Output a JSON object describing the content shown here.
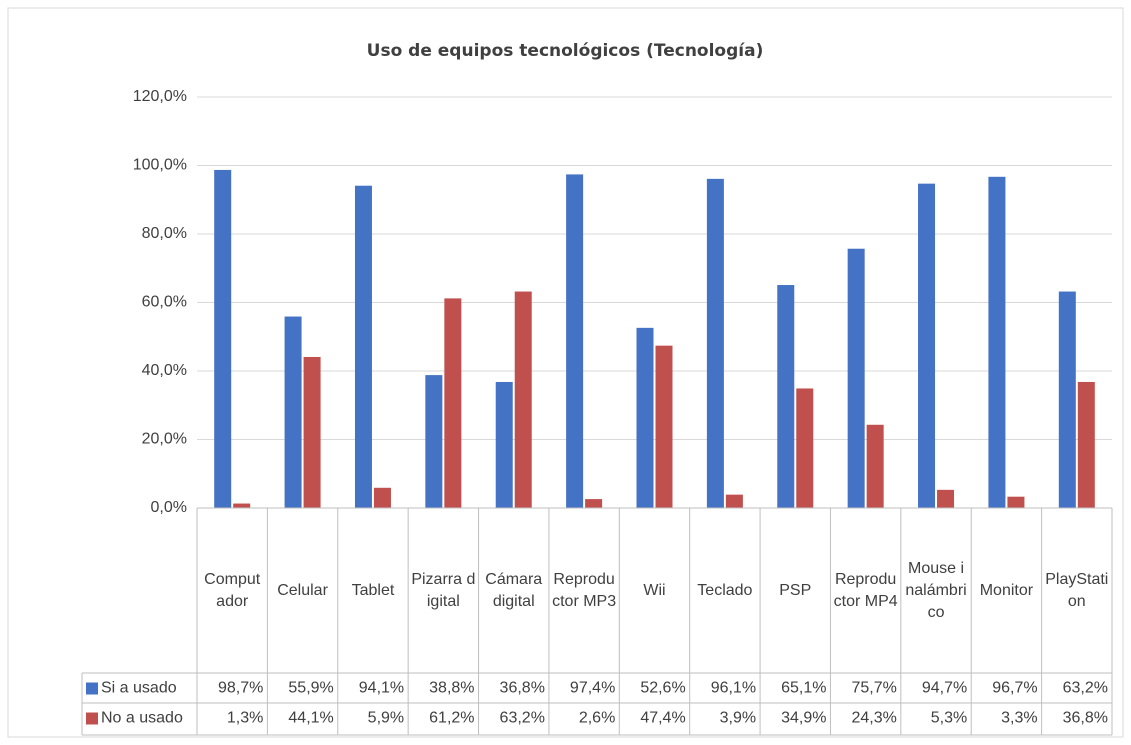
{
  "chart_data": {
    "type": "bar",
    "title": "Uso de equipos tecnológicos (Tecnología)",
    "categories": [
      "Computador",
      "Celular",
      "Tablet",
      "Pizarra digital",
      "Cámara digital",
      "Reproductor MP3",
      "Wii",
      "Teclado",
      "PSP",
      "Reproductor MP4",
      "Mouse inalámbrico",
      "Monitor",
      "PlayStation"
    ],
    "series": [
      {
        "name": "Si a usado",
        "color": "#4472c4",
        "values": [
          98.7,
          55.9,
          94.1,
          38.8,
          36.8,
          97.4,
          52.6,
          96.1,
          65.1,
          75.7,
          94.7,
          96.7,
          63.2
        ],
        "value_labels": [
          "98,7%",
          "55,9%",
          "94,1%",
          "38,8%",
          "36,8%",
          "97,4%",
          "52,6%",
          "96,1%",
          "65,1%",
          "75,7%",
          "94,7%",
          "96,7%",
          "63,2%"
        ]
      },
      {
        "name": "No a usado",
        "color": "#c0504d",
        "values": [
          1.3,
          44.1,
          5.9,
          61.2,
          63.2,
          2.6,
          47.4,
          3.9,
          34.9,
          24.3,
          5.3,
          3.3,
          36.8
        ],
        "value_labels": [
          "1,3%",
          "44,1%",
          "5,9%",
          "61,2%",
          "63,2%",
          "2,6%",
          "47,4%",
          "3,9%",
          "34,9%",
          "24,3%",
          "5,3%",
          "3,3%",
          "36,8%"
        ]
      }
    ],
    "ylim": [
      0,
      120
    ],
    "yticks": [
      {
        "value": 0,
        "label": "0,0%"
      },
      {
        "value": 20,
        "label": "20,0%"
      },
      {
        "value": 40,
        "label": "40,0%"
      },
      {
        "value": 60,
        "label": "60,0%"
      },
      {
        "value": 80,
        "label": "80,0%"
      },
      {
        "value": 100,
        "label": "100,0%"
      },
      {
        "value": 120,
        "label": "120,0%"
      }
    ],
    "grid": true
  }
}
